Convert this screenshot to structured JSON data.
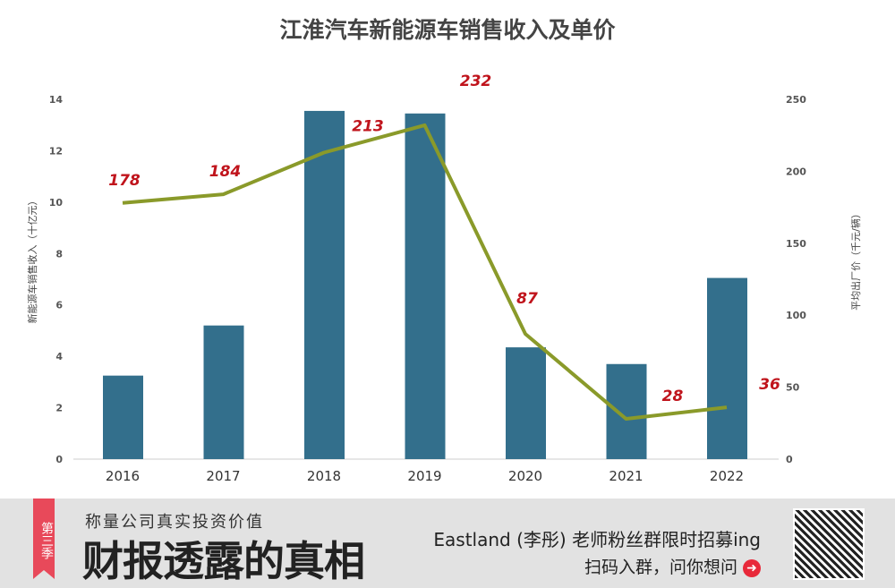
{
  "chart_data": {
    "type": "bar+line",
    "title": "江淮汽车新能源车销售收入及单价",
    "categories": [
      "2016",
      "2017",
      "2018",
      "2019",
      "2020",
      "2021",
      "2022"
    ],
    "series": [
      {
        "axis": "left",
        "type": "bar",
        "values": [
          3.25,
          5.2,
          13.55,
          13.45,
          4.35,
          3.7,
          7.05
        ],
        "color": "#336f8c"
      },
      {
        "axis": "right",
        "type": "line",
        "values": [
          178,
          184,
          213,
          232,
          87,
          28,
          36
        ],
        "color": "#8a9a2a",
        "labels_color": "#c0141c"
      }
    ],
    "ylabel": "新能源车销售收入（十亿元）",
    "y2label": "平均出厂价（千元/辆）",
    "ylim": [
      0,
      14
    ],
    "yticks": [
      0,
      2,
      4,
      6,
      8,
      10,
      12,
      14
    ],
    "y2lim": [
      0,
      250
    ],
    "y2ticks": [
      0,
      50,
      100,
      150,
      200,
      250
    ],
    "grid": false
  },
  "banner": {
    "ribbon": "第三季",
    "tagline": "称量公司真实投资价值",
    "headline": "财报透露的真相",
    "promo": "Eastland (李彤) 老师粉丝群限时招募ing",
    "scan": "扫码入群，问你想问",
    "arrow_icon": "arrow-right-circle-icon"
  }
}
